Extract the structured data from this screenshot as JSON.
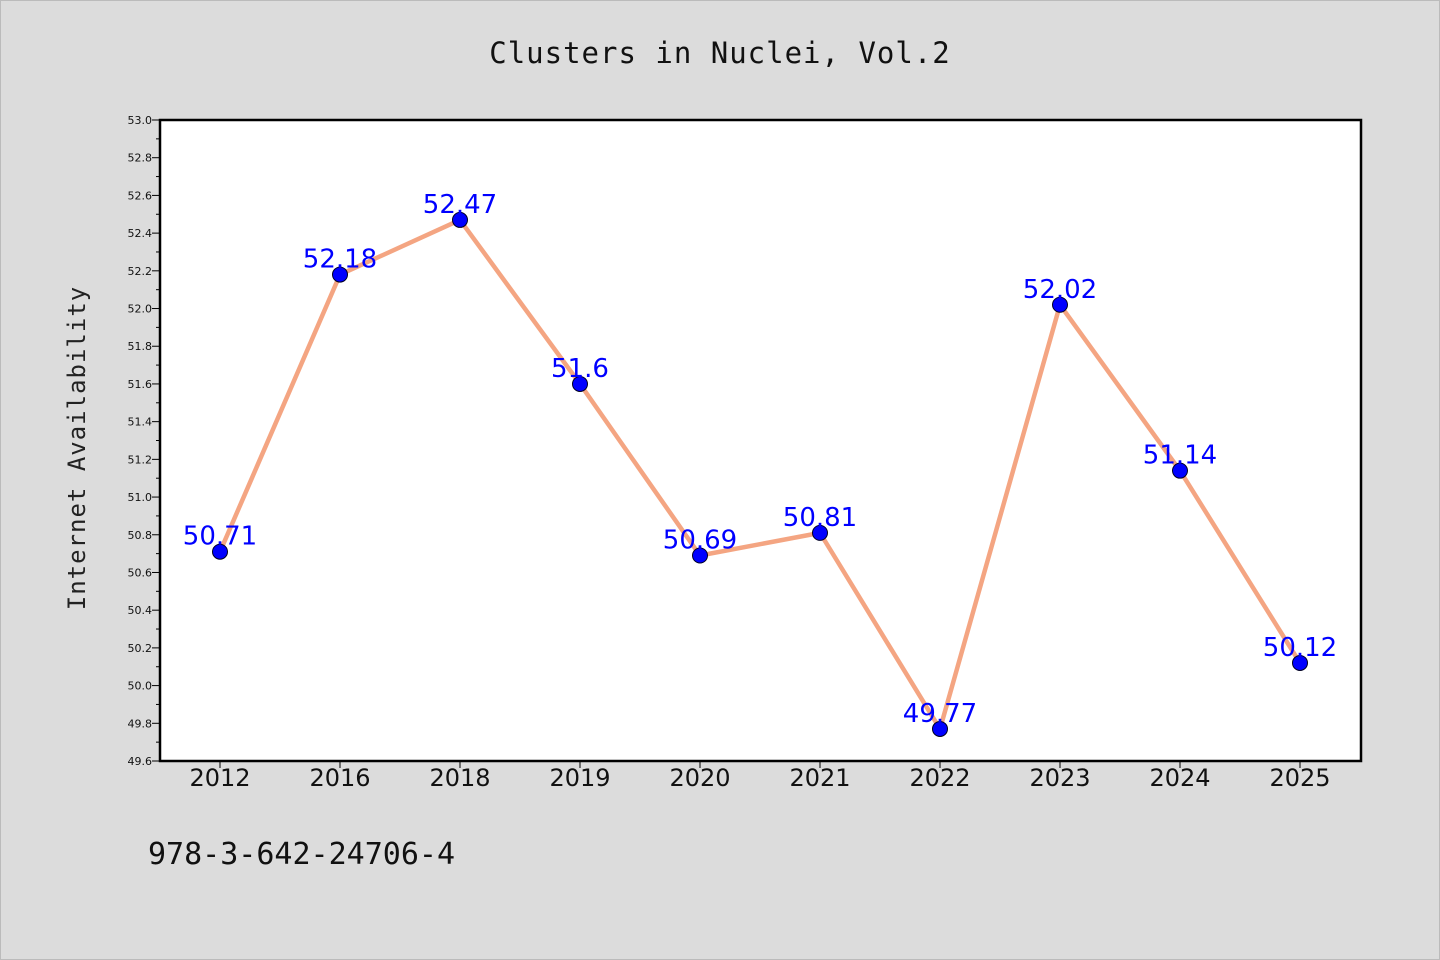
{
  "chart_data": {
    "type": "line",
    "title": "Clusters in Nuclei, Vol.2",
    "xlabel": "",
    "ylabel": "Internet Availability",
    "categories": [
      "2012",
      "2016",
      "2018",
      "2019",
      "2020",
      "2021",
      "2022",
      "2023",
      "2024",
      "2025"
    ],
    "series": [
      {
        "values": [
          50.71,
          52.18,
          52.47,
          51.6,
          50.69,
          50.81,
          49.77,
          52.02,
          51.14,
          50.12
        ],
        "data_labels": [
          "50.71",
          "52.18",
          "52.47",
          "51.6",
          "50.69",
          "50.81",
          "49.77",
          "52.02",
          "51.14",
          "50.12"
        ]
      }
    ],
    "ylim": [
      49.6,
      53.0
    ],
    "yticks": [
      "49.6",
      "49.8",
      "50.0",
      "50.2",
      "50.4",
      "50.6",
      "50.8",
      "51.0",
      "51.2",
      "51.4",
      "51.6",
      "51.8",
      "52.0",
      "52.2",
      "52.4",
      "52.6",
      "52.8",
      "53.0"
    ],
    "grid": false,
    "legend": "none",
    "colors": {
      "line": "#f4a582",
      "marker": "#0000ff",
      "data_label": "#0000ff",
      "background": "#dcdcdc",
      "plot_background": "#ffffff"
    }
  },
  "footer": {
    "isbn": "978-3-642-24706-4"
  }
}
